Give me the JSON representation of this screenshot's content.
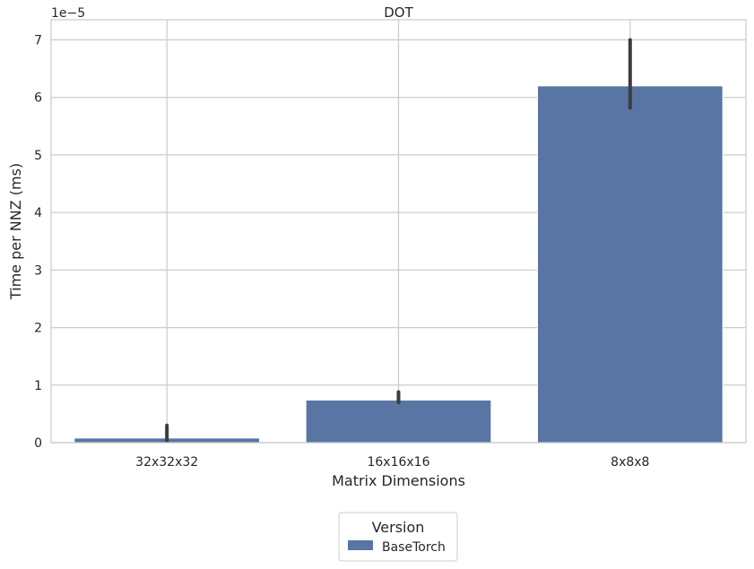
{
  "chart_data": {
    "type": "bar",
    "title": "DOT",
    "xlabel": "Matrix Dimensions",
    "ylabel": "Time per NNZ (ms)",
    "y_offset_text": "1e−5",
    "y_scale_exponent": -5,
    "categories": [
      "32x32x32",
      "16x16x16",
      "8x8x8"
    ],
    "ylim": [
      0,
      7.35
    ],
    "yticks": [
      0,
      1,
      2,
      3,
      4,
      5,
      6,
      7
    ],
    "grid": true,
    "legend": {
      "title": "Version",
      "placement": "bottom-center"
    },
    "series": [
      {
        "name": "BaseTorch",
        "color": "#5875a4",
        "values": [
          0.08,
          0.74,
          6.2
        ],
        "error_low": [
          0.03,
          0.7,
          5.82
        ],
        "error_high": [
          0.3,
          0.88,
          7.0
        ]
      }
    ]
  }
}
